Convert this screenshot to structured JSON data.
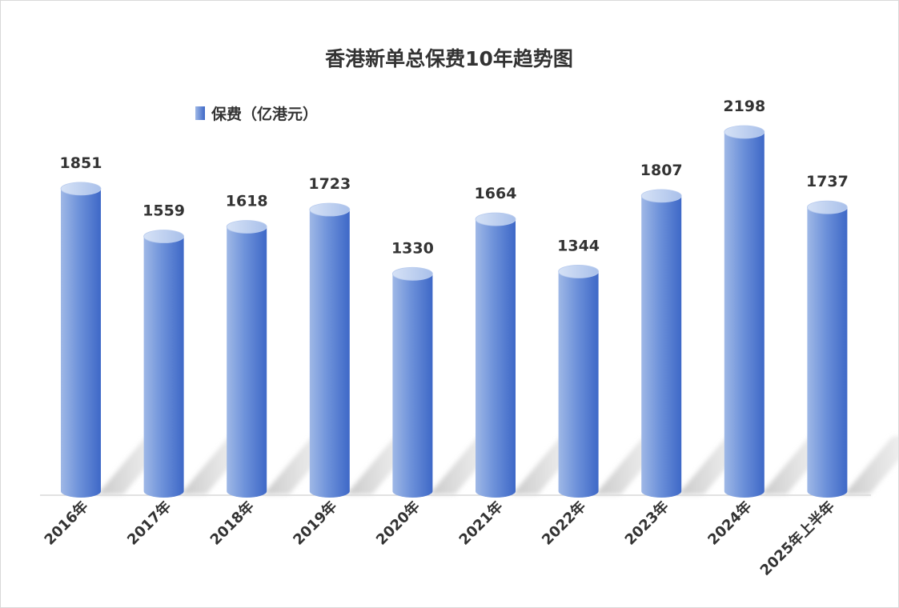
{
  "chart_data": {
    "type": "bar",
    "title": "香港新单总保费10年趋势图",
    "categories": [
      "2016年",
      "2017年",
      "2018年",
      "2019年",
      "2020年",
      "2021年",
      "2022年",
      "2023年",
      "2024年",
      "2025年上半年"
    ],
    "series": [
      {
        "name": "保费（亿港元）",
        "values": [
          1851,
          1559,
          1618,
          1723,
          1330,
          1664,
          1344,
          1807,
          2198,
          1737
        ],
        "color": "#4472C4"
      }
    ],
    "data_labels": [
      "1851",
      "1559",
      "1618",
      "1723",
      "1330",
      "1664",
      "1344",
      "1807",
      "2198",
      "1737"
    ],
    "ylim": [
      0,
      2300
    ],
    "grid": false,
    "y_axis_visible": false,
    "legend_position": "top-left",
    "bar_style": "3d-cylinder"
  }
}
